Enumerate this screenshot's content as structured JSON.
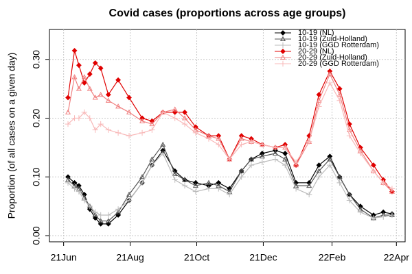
{
  "chart_data": {
    "type": "line",
    "title": "Covid cases (proportions across age groups)",
    "y_label": "Proportion (of all cases on a given day)",
    "x": [
      "25Jun",
      "1Jul",
      "5Jul",
      "10Jul",
      "15Jul",
      "20Jul",
      "25Jul",
      "1Aug",
      "10Aug",
      "20Aug",
      "1Sep",
      "10Sep",
      "20Sep",
      "1Oct",
      "10Oct",
      "20Oct",
      "1Nov",
      "10Nov",
      "20Nov",
      "1Dec",
      "10Dec",
      "20Dec",
      "1Jan",
      "10Jan",
      "20Jan",
      "1Feb",
      "10Feb",
      "20Feb",
      "1Mar",
      "10Mar",
      "20Mar",
      "1Apr",
      "10Apr",
      "18Apr"
    ],
    "xlim": [
      "8Jun",
      "30Apr"
    ],
    "xticks": [
      "21Jun",
      "21Aug",
      "21Oct",
      "21Dec",
      "22Feb",
      "22Apr"
    ],
    "ylim": [
      -0.0105,
      0.351
    ],
    "yticks": [
      {
        "value": 0,
        "label": "0.00"
      },
      {
        "value": 0.1,
        "label": "0.10"
      },
      {
        "value": 0.2,
        "label": "0.20"
      },
      {
        "value": 0.3,
        "label": "0.30"
      }
    ],
    "grid": true,
    "legend": "top-right",
    "series": [
      {
        "name": "10-19 (NL)",
        "color": "#000000",
        "marker": "diamond",
        "values": [
          0.1,
          0.09,
          0.085,
          0.07,
          0.045,
          0.03,
          0.02,
          0.02,
          0.035,
          0.06,
          0.09,
          0.12,
          0.145,
          0.11,
          0.095,
          0.09,
          0.085,
          0.09,
          0.08,
          0.11,
          0.13,
          0.14,
          0.145,
          0.14,
          0.09,
          0.09,
          0.12,
          0.135,
          0.1,
          0.07,
          0.05,
          0.035,
          0.04,
          0.037
        ]
      },
      {
        "name": "10-19 (Zuid-Holland)",
        "color": "#555555",
        "marker": "triangle",
        "values": [
          0.095,
          0.085,
          0.08,
          0.065,
          0.05,
          0.035,
          0.025,
          0.025,
          0.04,
          0.07,
          0.1,
          0.13,
          0.155,
          0.105,
          0.095,
          0.085,
          0.09,
          0.085,
          0.075,
          0.11,
          0.13,
          0.135,
          0.14,
          0.13,
          0.085,
          0.085,
          0.11,
          0.13,
          0.1,
          0.07,
          0.045,
          0.03,
          0.035,
          0.035
        ]
      },
      {
        "name": "10-19 (GGD Rotterdam)",
        "color": "#bbbbbb",
        "marker": "plus",
        "values": [
          0.09,
          0.08,
          0.075,
          0.06,
          0.05,
          0.04,
          0.035,
          0.035,
          0.045,
          0.06,
          0.09,
          0.12,
          0.14,
          0.095,
          0.085,
          0.075,
          0.08,
          0.08,
          0.07,
          0.1,
          0.12,
          0.125,
          0.13,
          0.12,
          0.08,
          0.07,
          0.1,
          0.12,
          0.09,
          0.06,
          0.04,
          0.03,
          0.032,
          0.035
        ]
      },
      {
        "name": "20-29 (NL)",
        "color": "#e00000",
        "marker": "diamond",
        "values": [
          0.235,
          0.315,
          0.29,
          0.26,
          0.275,
          0.294,
          0.285,
          0.24,
          0.265,
          0.235,
          0.2,
          0.195,
          0.21,
          0.21,
          0.21,
          0.185,
          0.17,
          0.17,
          0.13,
          0.17,
          0.165,
          0.155,
          0.15,
          0.155,
          0.12,
          0.17,
          0.24,
          0.28,
          0.25,
          0.19,
          0.15,
          0.12,
          0.095,
          0.075
        ]
      },
      {
        "name": "20-29 (Zuid-Holland)",
        "color": "#f08080",
        "marker": "triangle",
        "values": [
          0.21,
          0.27,
          0.25,
          0.27,
          0.25,
          0.235,
          0.24,
          0.23,
          0.22,
          0.21,
          0.195,
          0.19,
          0.21,
          0.215,
          0.2,
          0.18,
          0.17,
          0.165,
          0.13,
          0.165,
          0.16,
          0.155,
          0.15,
          0.15,
          0.12,
          0.16,
          0.23,
          0.275,
          0.24,
          0.18,
          0.145,
          0.11,
          0.09,
          0.075
        ]
      },
      {
        "name": "20-29 (GGD Rotterdam)",
        "color": "#f8b8b8",
        "marker": "plus",
        "values": [
          0.19,
          0.2,
          0.2,
          0.21,
          0.2,
          0.18,
          0.19,
          0.18,
          0.175,
          0.17,
          0.175,
          0.18,
          0.21,
          0.2,
          0.19,
          0.175,
          0.165,
          0.155,
          0.13,
          0.155,
          0.16,
          0.155,
          0.15,
          0.15,
          0.125,
          0.16,
          0.22,
          0.26,
          0.23,
          0.17,
          0.14,
          0.11,
          0.09,
          0.08
        ]
      }
    ]
  }
}
